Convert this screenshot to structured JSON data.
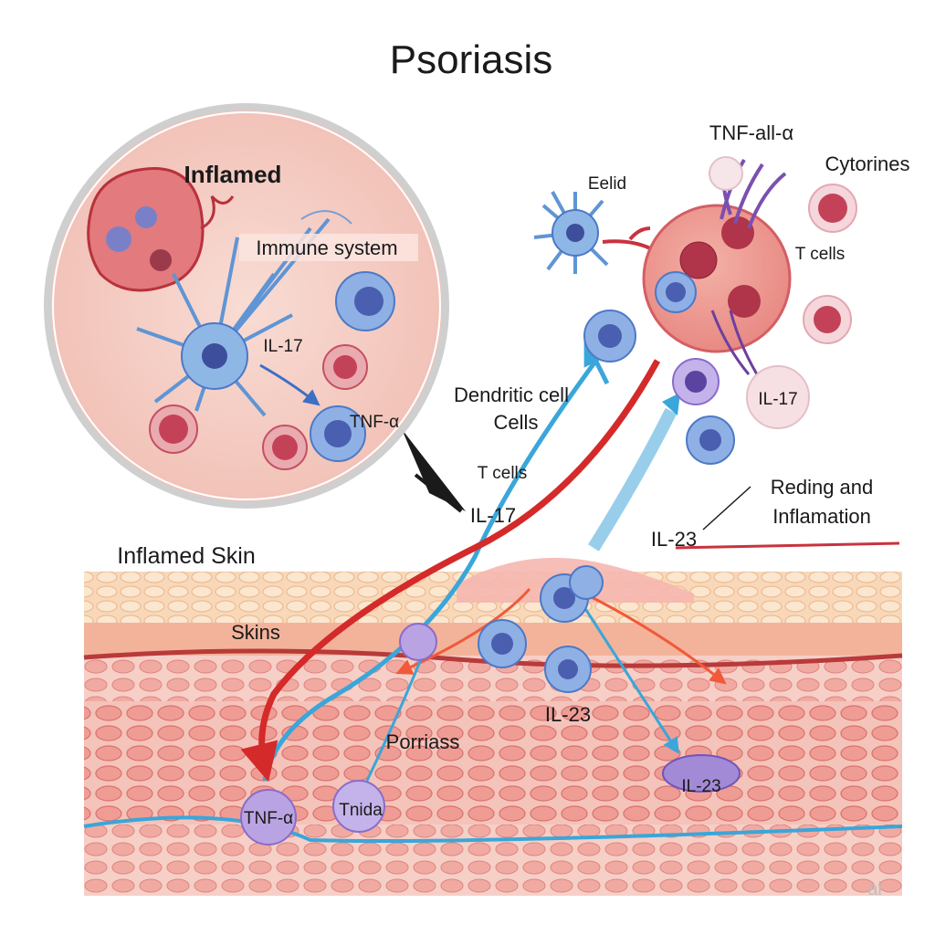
{
  "title": "Psoriasis",
  "inset": {
    "heading": "Inflamed",
    "immune_label": "Immune system",
    "il17_label": "IL-17",
    "tnf_label": "TNF-α"
  },
  "right_cluster": {
    "tnf_label": "TNF-all-α",
    "cytokines_label": "Cytorines",
    "eelid_label": "Eelid",
    "tcells_label": "T cells",
    "il17_label": "IL-17"
  },
  "middle": {
    "dendritic_line1": "Dendritic cell",
    "dendritic_line2": "Cells",
    "tcells_label": "T cells",
    "il17_label": "IL-17",
    "il23_label": "IL-23",
    "reding_line1": "Reding and",
    "reding_line2": "Inflamation"
  },
  "skin": {
    "heading": "Inflamed Skin",
    "skins_label": "Skins",
    "psoriasis_label": "Porriass",
    "il23_label": "IL-23",
    "il23_cell_label": "IL-23",
    "tnf_cell_label": "TNF-α",
    "trida_cell_label": "Tnida"
  },
  "watermark": "ai",
  "colors": {
    "background": "#ffffff",
    "skin_pink": "#f6cdc4",
    "skin_orange": "#f5c9a0",
    "cell_blue": "#5b8fd0",
    "cell_red": "#c94a5c",
    "cell_purple": "#a38ad6",
    "arrow_red": "#d42a2a",
    "arrow_blue": "#3aa6d9"
  }
}
